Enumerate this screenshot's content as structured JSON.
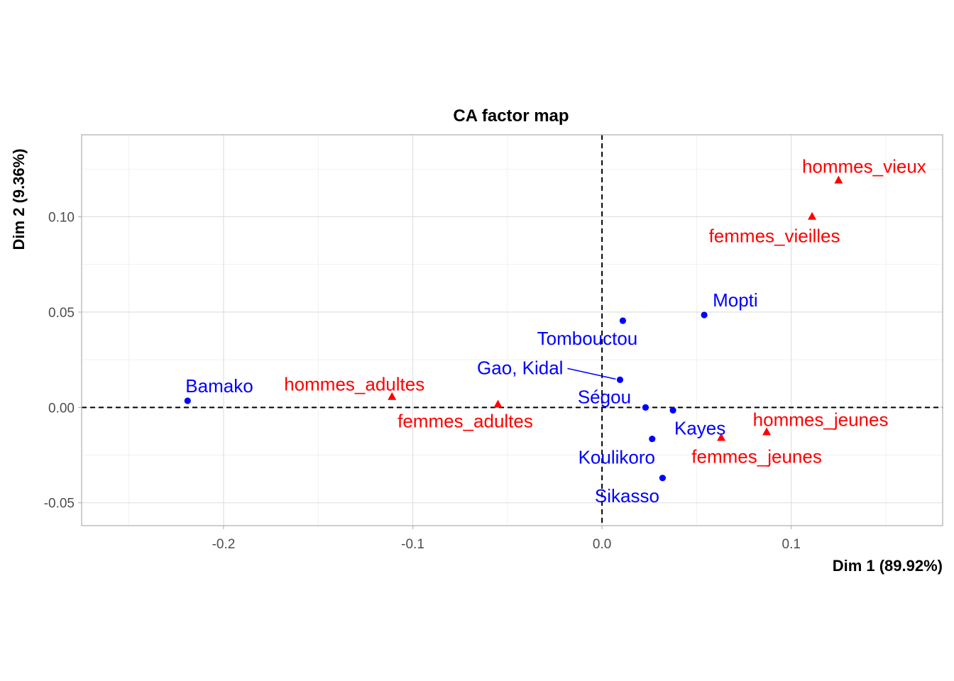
{
  "chart_data": {
    "type": "scatter",
    "title": "CA factor map",
    "xlabel": "Dim 1 (89.92%)",
    "ylabel": "Dim 2 (9.36%)",
    "xlim": [
      -0.275,
      0.18
    ],
    "ylim": [
      -0.062,
      0.143
    ],
    "x_ticks": [
      -0.2,
      -0.1,
      0.0,
      0.1
    ],
    "x_tick_labels": [
      "-0.2",
      "-0.1",
      "0.0",
      "0.1"
    ],
    "y_ticks": [
      -0.05,
      0.0,
      0.05,
      0.1
    ],
    "y_tick_labels": [
      "-0.05",
      "0.00",
      "0.05",
      "0.10"
    ],
    "grid": true,
    "reference_lines": {
      "x": 0,
      "y": 0,
      "style": "dashed"
    },
    "colors": {
      "rows": "#0000ff",
      "columns": "#ff0000",
      "connector": "#0000ff"
    },
    "series": [
      {
        "marker": "circle",
        "color": "#0000ff",
        "points": [
          {
            "label": "Bamako",
            "x": -0.219,
            "y": 0.0035
          },
          {
            "label": "Mopti",
            "x": 0.054,
            "y": 0.0485
          },
          {
            "label": "Tombouctou",
            "x": 0.011,
            "y": 0.0455
          },
          {
            "label": "Gao, Kidal",
            "x": 0.0095,
            "y": 0.0145
          },
          {
            "label": "Ségou",
            "x": 0.023,
            "y": 0.0
          },
          {
            "label": "Kayes",
            "x": 0.0375,
            "y": -0.0015
          },
          {
            "label": "Koulikoro",
            "x": 0.0265,
            "y": -0.0165
          },
          {
            "label": "Sikasso",
            "x": 0.032,
            "y": -0.037
          }
        ]
      },
      {
        "marker": "triangle",
        "color": "#ff0000",
        "points": [
          {
            "label": "hommes_vieux",
            "x": 0.125,
            "y": 0.119
          },
          {
            "label": "femmes_vieilles",
            "x": 0.111,
            "y": 0.1
          },
          {
            "label": "hommes_adultes",
            "x": -0.111,
            "y": 0.0055
          },
          {
            "label": "femmes_adultes",
            "x": -0.055,
            "y": 0.0015
          },
          {
            "label": "hommes_jeunes",
            "x": 0.087,
            "y": -0.013
          },
          {
            "label": "femmes_jeunes",
            "x": 0.063,
            "y": -0.016
          }
        ]
      }
    ]
  }
}
